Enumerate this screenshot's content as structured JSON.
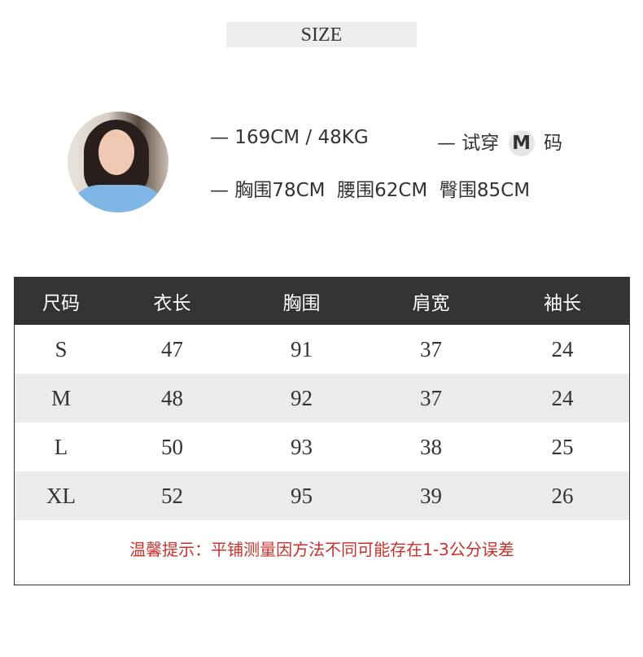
{
  "banner": {
    "title": "SIZE"
  },
  "model": {
    "height_weight": "— 169CM / 48KG",
    "try_prefix": "— 试穿",
    "try_size": "M",
    "try_suffix": "码",
    "measurements": "— 胸围78CM  腰围62CM  臀围85CM"
  },
  "table": {
    "headers": [
      "尺码",
      "衣长",
      "胸围",
      "肩宽",
      "袖长"
    ],
    "rows": [
      [
        "S",
        "47",
        "91",
        "37",
        "24"
      ],
      [
        "M",
        "48",
        "92",
        "37",
        "24"
      ],
      [
        "L",
        "50",
        "93",
        "38",
        "25"
      ],
      [
        "XL",
        "52",
        "95",
        "39",
        "26"
      ]
    ],
    "note": "温馨提示：平铺测量因方法不同可能存在1-3公分误差"
  },
  "colors": {
    "header_bg": "#333333",
    "stripe": "#ebebeb",
    "note": "#c8322d"
  }
}
